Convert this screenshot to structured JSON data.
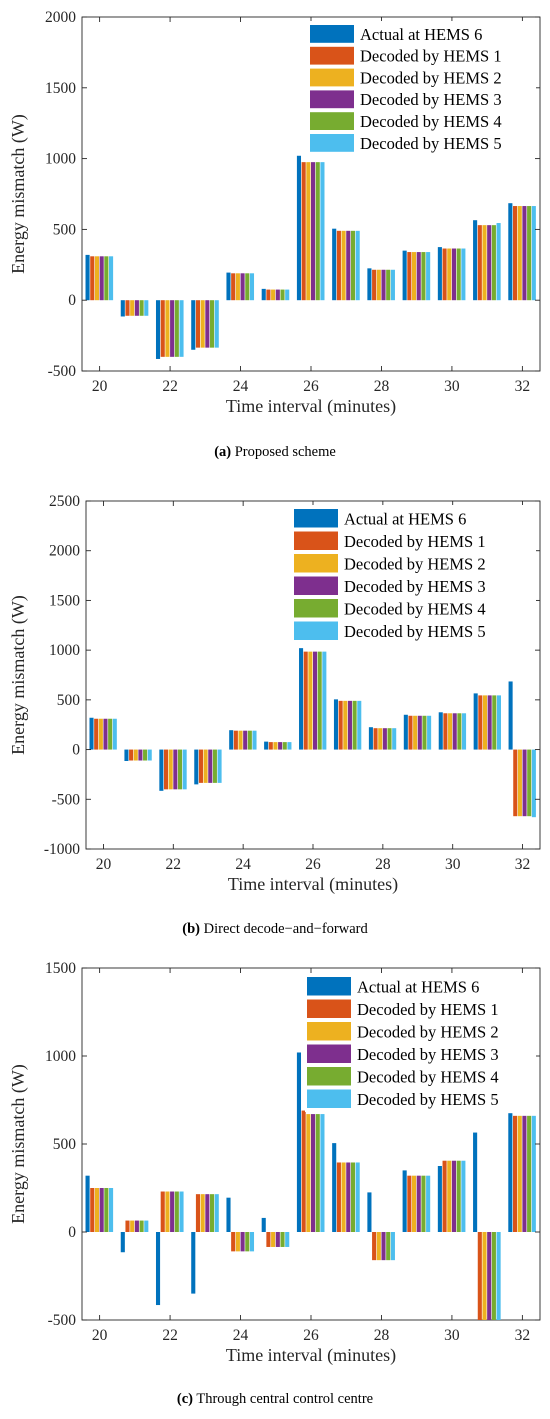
{
  "colors": {
    "series": [
      "#0072BD",
      "#D95319",
      "#EDB120",
      "#7E2F8E",
      "#77AC30",
      "#4DBEEE"
    ],
    "axis": "#262626"
  },
  "chart_data": [
    {
      "type": "bar",
      "panel_letter": "(a)",
      "caption": "Proposed scheme",
      "xlabel": "Time interval (minutes)",
      "ylabel": "Energy mismatch (W)",
      "ylim": [
        -500,
        2000
      ],
      "yticks": [
        "2000",
        "1500",
        "1000",
        "500",
        "0",
        "-500"
      ],
      "xticks": [
        "20",
        "22",
        "24",
        "26",
        "28",
        "30",
        "32"
      ],
      "categories": [
        20,
        21,
        22,
        23,
        24,
        25,
        26,
        27,
        28,
        29,
        30,
        31,
        32
      ],
      "legend_position": "top-right",
      "series": [
        {
          "name": "Actual at HEMS 6",
          "values": [
            320,
            -115,
            -415,
            -350,
            195,
            80,
            1020,
            505,
            225,
            350,
            375,
            565,
            685
          ]
        },
        {
          "name": "Decoded by HEMS 1",
          "values": [
            310,
            -110,
            -400,
            -335,
            190,
            75,
            975,
            490,
            215,
            340,
            365,
            530,
            665
          ]
        },
        {
          "name": "Decoded by HEMS 2",
          "values": [
            310,
            -110,
            -400,
            -335,
            190,
            75,
            975,
            490,
            215,
            340,
            365,
            530,
            665
          ]
        },
        {
          "name": "Decoded by HEMS 3",
          "values": [
            310,
            -110,
            -400,
            -335,
            190,
            75,
            975,
            490,
            215,
            340,
            365,
            530,
            665
          ]
        },
        {
          "name": "Decoded by HEMS 4",
          "values": [
            310,
            -110,
            -400,
            -335,
            190,
            75,
            975,
            490,
            215,
            340,
            365,
            530,
            665
          ]
        },
        {
          "name": "Decoded by HEMS 5",
          "values": [
            310,
            -110,
            -400,
            -335,
            190,
            75,
            975,
            490,
            215,
            340,
            365,
            545,
            665
          ]
        }
      ]
    },
    {
      "type": "bar",
      "panel_letter": "(b)",
      "caption": "Direct decode−and−forward",
      "xlabel": "Time interval (minutes)",
      "ylabel": "Energy mismatch (W)",
      "ylim": [
        -1000,
        2500
      ],
      "yticks": [
        "2500",
        "2000",
        "1500",
        "1000",
        "500",
        "0",
        "-500",
        "-1000"
      ],
      "xticks": [
        "20",
        "22",
        "24",
        "26",
        "28",
        "30",
        "32"
      ],
      "categories": [
        20,
        21,
        22,
        23,
        24,
        25,
        26,
        27,
        28,
        29,
        30,
        31,
        32
      ],
      "legend_position": "top-right",
      "series": [
        {
          "name": "Actual at HEMS 6",
          "values": [
            320,
            -115,
            -415,
            -350,
            195,
            80,
            1020,
            505,
            225,
            350,
            375,
            565,
            685
          ]
        },
        {
          "name": "Decoded by HEMS 1",
          "values": [
            310,
            -110,
            -400,
            -335,
            190,
            75,
            985,
            490,
            215,
            340,
            365,
            545,
            -670
          ]
        },
        {
          "name": "Decoded by HEMS 2",
          "values": [
            310,
            -110,
            -400,
            -335,
            190,
            75,
            985,
            490,
            215,
            340,
            365,
            545,
            -670
          ]
        },
        {
          "name": "Decoded by HEMS 3",
          "values": [
            310,
            -110,
            -400,
            -335,
            190,
            75,
            985,
            490,
            215,
            340,
            365,
            545,
            -670
          ]
        },
        {
          "name": "Decoded by HEMS 4",
          "values": [
            310,
            -110,
            -400,
            -335,
            190,
            75,
            985,
            490,
            215,
            340,
            365,
            545,
            -670
          ]
        },
        {
          "name": "Decoded by HEMS 5",
          "values": [
            310,
            -110,
            -400,
            -335,
            190,
            75,
            985,
            490,
            215,
            340,
            365,
            545,
            -680
          ]
        }
      ]
    },
    {
      "type": "bar",
      "panel_letter": "(c)",
      "caption": "Through central control centre",
      "xlabel": "Time interval (minutes)",
      "ylabel": "Energy mismatch (W)",
      "ylim": [
        -500,
        1500
      ],
      "yticks": [
        "1500",
        "1000",
        "500",
        "0",
        "-500"
      ],
      "xticks": [
        "20",
        "22",
        "24",
        "26",
        "28",
        "30",
        "32"
      ],
      "categories": [
        20,
        21,
        22,
        23,
        24,
        25,
        26,
        27,
        28,
        29,
        30,
        31,
        32
      ],
      "legend_position": "top-right",
      "series": [
        {
          "name": "Actual at HEMS 6",
          "values": [
            320,
            -115,
            -415,
            -350,
            195,
            80,
            1020,
            505,
            225,
            350,
            375,
            565,
            675
          ]
        },
        {
          "name": "Decoded by HEMS 1",
          "values": [
            250,
            65,
            230,
            215,
            -110,
            -85,
            690,
            395,
            -160,
            320,
            405,
            -500,
            660
          ]
        },
        {
          "name": "Decoded by HEMS 2",
          "values": [
            250,
            65,
            230,
            215,
            -110,
            -85,
            670,
            395,
            -160,
            320,
            405,
            -500,
            660
          ]
        },
        {
          "name": "Decoded by HEMS 3",
          "values": [
            250,
            65,
            230,
            215,
            -110,
            -85,
            670,
            395,
            -160,
            320,
            405,
            -500,
            660
          ]
        },
        {
          "name": "Decoded by HEMS 4",
          "values": [
            250,
            65,
            230,
            215,
            -110,
            -85,
            670,
            395,
            -160,
            320,
            405,
            -500,
            660
          ]
        },
        {
          "name": "Decoded by HEMS 5",
          "values": [
            250,
            65,
            230,
            215,
            -110,
            -85,
            670,
            395,
            -160,
            320,
            405,
            -500,
            660
          ]
        }
      ]
    }
  ]
}
